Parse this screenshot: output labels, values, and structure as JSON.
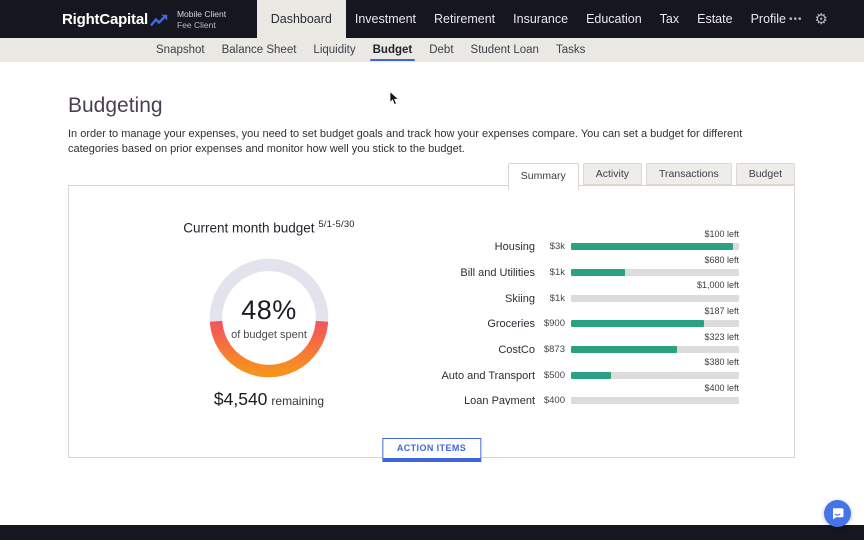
{
  "colors": {
    "dark": "#16161e",
    "beige": "#eae8e3",
    "accent": "#4066df",
    "green": "#2ba183",
    "track": "#dcdcdc",
    "chat": "#4573e8"
  },
  "brand": {
    "logo": "RightCapital",
    "client_line1": "Mobile Client",
    "client_line2": "Fee Client"
  },
  "top_nav": {
    "items": [
      {
        "label": "Dashboard",
        "active": true
      },
      {
        "label": "Investment"
      },
      {
        "label": "Retirement"
      },
      {
        "label": "Insurance"
      },
      {
        "label": "Education"
      },
      {
        "label": "Tax"
      },
      {
        "label": "Estate"
      },
      {
        "label": "Profile"
      }
    ],
    "more_glyph": "•••",
    "gear_glyph": "⚙"
  },
  "sub_nav": {
    "items": [
      {
        "label": "Snapshot"
      },
      {
        "label": "Balance Sheet"
      },
      {
        "label": "Liquidity"
      },
      {
        "label": "Budget",
        "active": true
      },
      {
        "label": "Debt"
      },
      {
        "label": "Student Loan"
      },
      {
        "label": "Tasks"
      }
    ]
  },
  "page": {
    "title": "Budgeting",
    "description": "In order to manage your expenses, you need to set budget goals and track how your expenses compare. You can set a budget for different categories based on prior expenses and monitor how well you stick to the budget."
  },
  "tabs": {
    "items": [
      {
        "label": "Summary",
        "active": true
      },
      {
        "label": "Activity"
      },
      {
        "label": "Transactions"
      },
      {
        "label": "Budget"
      }
    ]
  },
  "donut": {
    "title": "Current month budget",
    "period": "5/1-5/30",
    "percent": "48%",
    "percent_value": 48,
    "center_caption": "of budget spent",
    "remaining_amount": "$4,540",
    "remaining_label": "remaining",
    "spent_color_top": "#f4525f",
    "spent_color_bottom": "#f6921e",
    "unspent_color": "#e3e3ee"
  },
  "budget_rows": [
    {
      "label": "Housing",
      "amount": "$3k",
      "left": "$100 left",
      "spent_pct": 96.7
    },
    {
      "label": "Bill and Utilities",
      "amount": "$1k",
      "left": "$680 left",
      "spent_pct": 32
    },
    {
      "label": "Skiing",
      "amount": "$1k",
      "left": "$1,000 left",
      "spent_pct": 0
    },
    {
      "label": "Groceries",
      "amount": "$900",
      "left": "$187 left",
      "spent_pct": 79.2
    },
    {
      "label": "CostCo",
      "amount": "$873",
      "left": "$323 left",
      "spent_pct": 63
    },
    {
      "label": "Auto and Transport",
      "amount": "$500",
      "left": "$380 left",
      "spent_pct": 24
    },
    {
      "label": "Loan Payment",
      "amount": "$400",
      "left": "$400 left",
      "spent_pct": 0
    }
  ],
  "action_button": {
    "label": "ACTION ITEMS"
  },
  "chart_data": [
    {
      "type": "pie",
      "title": "Current month budget 5/1-5/30",
      "labels": [
        "spent",
        "unspent"
      ],
      "values": [
        48,
        52
      ],
      "center_text": "48% of budget spent",
      "annotation": "$4,540 remaining"
    },
    {
      "type": "bar",
      "categories": [
        "Housing",
        "Bill and Utilities",
        "Skiing",
        "Groceries",
        "CostCo",
        "Auto and Transport",
        "Loan Payment"
      ],
      "series": [
        {
          "name": "budget",
          "values": [
            3000,
            1000,
            1000,
            900,
            873,
            500,
            400
          ]
        },
        {
          "name": "remaining",
          "values": [
            100,
            680,
            1000,
            187,
            323,
            380,
            400
          ]
        },
        {
          "name": "spent_percent",
          "values": [
            96.7,
            32,
            0,
            79.2,
            63,
            24,
            0
          ]
        }
      ],
      "orientation": "horizontal"
    }
  ]
}
